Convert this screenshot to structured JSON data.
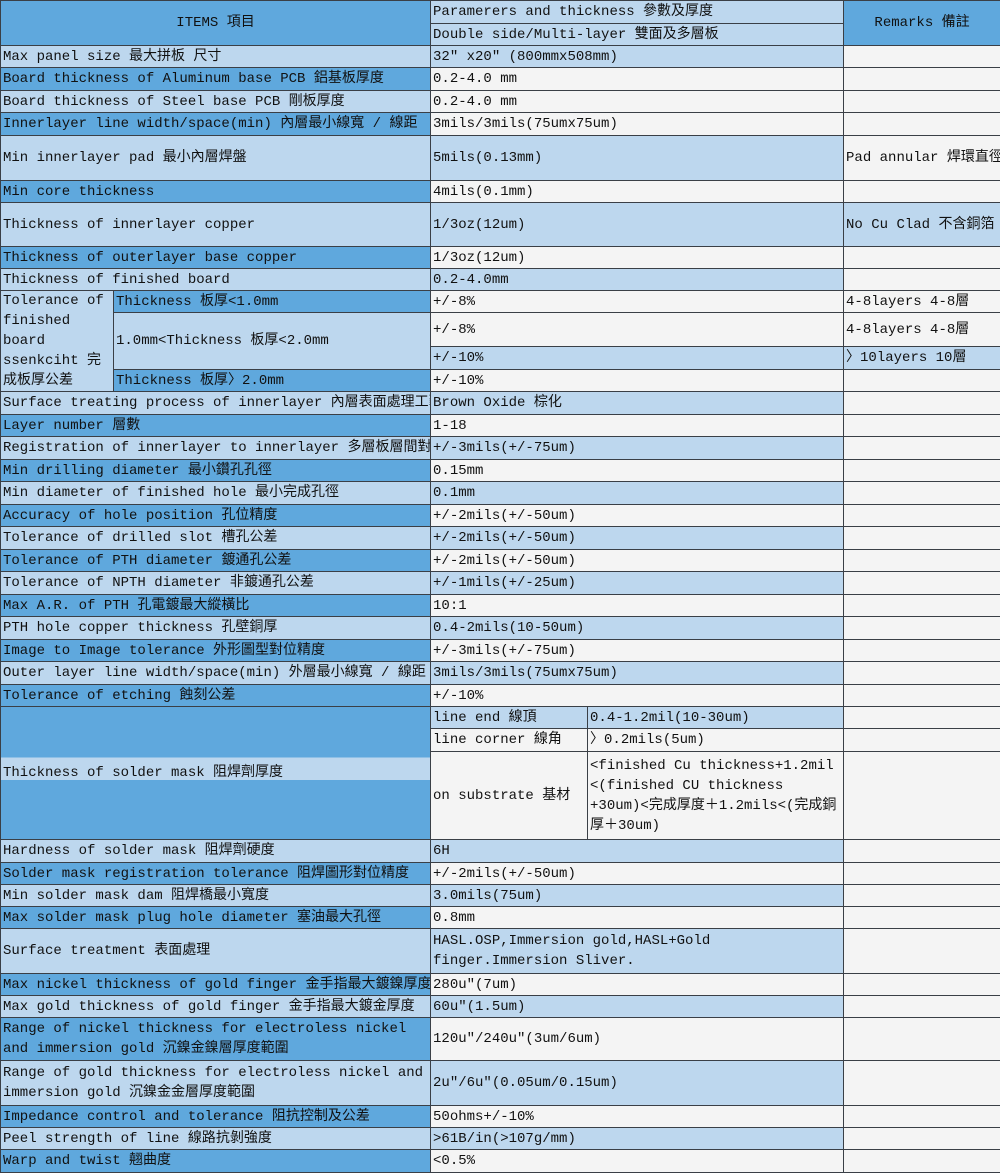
{
  "header": {
    "items": "ITEMS 項目",
    "params": "Paramerers and thickness 參數及厚度",
    "params_sub": "Double side/Multi-layer  雙面及多層板",
    "remarks": "Remarks 備註"
  },
  "colors": {
    "dark_blue": "#5fa8dd",
    "light_blue": "#bdd7ee",
    "white": "#f4f4f4",
    "border": "#3a3f46"
  },
  "rows": [
    {
      "item": "Max panel size 最大拼板 尺寸",
      "value": "32″ x20″ (800mmx508mm)",
      "remark": ""
    },
    {
      "item": "Board thickness of Aluminum base PCB 鋁基板厚度",
      "value": "0.2-4.0 mm",
      "remark": ""
    },
    {
      "item": "Board thickness of Steel base PCB 剛板厚度",
      "value": "0.2-4.0 mm",
      "remark": ""
    },
    {
      "item": "Innerlayer line width/space(min) 內層最小線寬 / 線距",
      "value": "3mils/3mils(75umx75um)",
      "remark": ""
    },
    {
      "item": "Min innerlayer pad 最小內層焊盤",
      "value": "5mils(0.13mm)",
      "remark": "Pad annular 焊環直徑"
    },
    {
      "item": "Min core thickness",
      "value": "4mils(0.1mm)",
      "remark": ""
    },
    {
      "item": "Thickness of innerlayer copper",
      "value": "1/3oz(12um)",
      "remark": "No Cu Clad 不含銅箔"
    },
    {
      "item": "Thickness of outerlayer base copper",
      "value": "1/3oz(12um)",
      "remark": ""
    },
    {
      "item": "Thickness of finished board",
      "value": "0.2-4.0mm",
      "remark": ""
    }
  ],
  "tolerance": {
    "label": "Tolerance of finished board ssenkciht 完成板厚公差",
    "sub": [
      {
        "item": "Thickness 板厚<1.0mm",
        "values": [
          {
            "value": "+/-8%",
            "remark": "4-8layers  4-8層"
          }
        ]
      },
      {
        "item": "1.0mm<Thickness 板厚<2.0mm",
        "values": [
          {
            "value": "+/-8%",
            "remark": "4-8layers  4-8層"
          },
          {
            "value": "+/-10%",
            "remark": "〉10layers 10層"
          }
        ]
      },
      {
        "item": "Thickness 板厚〉2.0mm",
        "values": [
          {
            "value": "+/-10%",
            "remark": ""
          }
        ]
      }
    ]
  },
  "rows2": [
    {
      "item": "Surface treating process of innerlayer 內層表面處理工藝",
      "value": "Brown Oxide 棕化",
      "remark": ""
    },
    {
      "item": "Layer number 層數",
      "value": "1-18",
      "remark": ""
    },
    {
      "item": "Registration of innerlayer to innerlayer 多層板層間對準度",
      "value": "+/-3mils(+/-75um)",
      "remark": ""
    },
    {
      "item": "Min drilling diameter 最小鑽孔孔徑",
      "value": "0.15mm",
      "remark": ""
    },
    {
      "item": "Min diameter of finished hole 最小完成孔徑",
      "value": "0.1mm",
      "remark": ""
    },
    {
      "item": "Accuracy of hole position 孔位精度",
      "value": "+/-2mils(+/-50um)",
      "remark": ""
    },
    {
      "item": "Tolerance of drilled slot 槽孔公差",
      "value": "+/-2mils(+/-50um)",
      "remark": ""
    },
    {
      "item": "Tolerance of PTH diameter 鍍通孔公差",
      "value": "+/-2mils(+/-50um)",
      "remark": ""
    },
    {
      "item": "Tolerance of NPTH diameter 非鍍通孔公差",
      "value": "+/-1mils(+/-25um)",
      "remark": ""
    },
    {
      "item": "Max A.R. of PTH 孔電鍍最大縱橫比",
      "value": "10:1",
      "remark": ""
    },
    {
      "item": "PTH hole copper thickness 孔壁銅厚",
      "value": "0.4-2mils(10-50um)",
      "remark": ""
    },
    {
      "item": "Image to Image tolerance 外形圖型對位精度",
      "value": "+/-3mils(+/-75um)",
      "remark": ""
    },
    {
      "item": "Outer layer line width/space(min) 外層最小線寬 / 線距",
      "value": "3mils/3mils(75umx75um)",
      "remark": ""
    },
    {
      "item": "Tolerance of etching 蝕刻公差",
      "value": "+/-10%",
      "remark": ""
    }
  ],
  "solder_mask": {
    "label": "Thickness of solder mask 阻焊劑厚度",
    "sub": [
      {
        "item": "line end 線頂",
        "value": "0.4-1.2mil(10-30um)",
        "remark": ""
      },
      {
        "item": "line corner 線角",
        "value": "〉0.2mils(5um)",
        "remark": ""
      },
      {
        "item": "on substrate 基材",
        "value": "<finished Cu thickness+1.2mil <(finished CU thickness +30um)<完成厚度＋1.2mils<(完成銅厚＋30um)",
        "remark": ""
      }
    ]
  },
  "rows3": [
    {
      "item": "Hardness of solder mask 阻焊劑硬度",
      "value": "6H",
      "remark": ""
    },
    {
      "item": "Solder mask registration tolerance 阻焊圖形對位精度",
      "value": "+/-2mils(+/-50um)",
      "remark": ""
    },
    {
      "item": "Min solder mask dam 阻焊橋最小寬度",
      "value": "3.0mils(75um)",
      "remark": ""
    },
    {
      "item": "Max solder mask plug hole diameter 塞油最大孔徑",
      "value": "0.8mm",
      "remark": ""
    },
    {
      "item": "Surface treatment 表面處理",
      "value": "HASL.OSP,Immersion gold,HASL+Gold finger.Immersion Sliver.",
      "remark": ""
    },
    {
      "item": "Max nickel thickness of gold finger 金手指最大鍍鎳厚度",
      "value": "280u″(7um)",
      "remark": ""
    },
    {
      "item": "Max gold thickness of gold finger 金手指最大鍍金厚度",
      "value": "60u″(1.5um)",
      "remark": ""
    },
    {
      "item": "Range of nickel thickness for electroless nickel and immersion gold  沉鎳金鎳層厚度範圍",
      "value": "120u″/240u″(3um/6um)",
      "remark": ""
    },
    {
      "item": "Range of gold thickness for electroless nickel and immersion gold  沉鎳金金層厚度範圍",
      "value": "2u″/6u″(0.05um/0.15um)",
      "remark": ""
    },
    {
      "item": "Impedance control and tolerance 阻抗控制及公差",
      "value": "50ohms+/-10%",
      "remark": ""
    },
    {
      "item": "Peel strength of line 線路抗剝強度",
      "value": ">61B/in(>107g/mm)",
      "remark": ""
    },
    {
      "item": "Warp and twist 翹曲度",
      "value": "<0.5%",
      "remark": ""
    }
  ]
}
